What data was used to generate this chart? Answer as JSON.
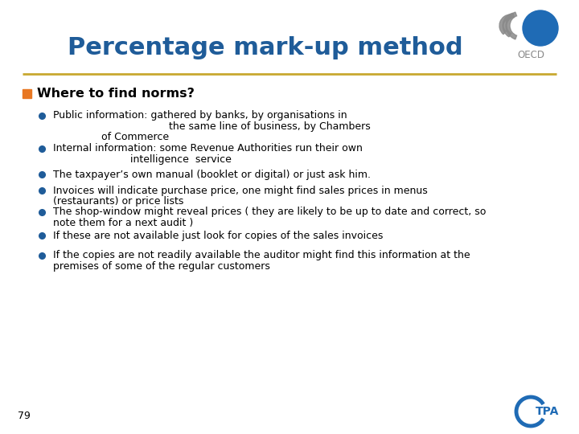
{
  "title": "Percentage mark-up method",
  "title_color": "#1F5C99",
  "title_fontsize": 22,
  "background_color": "#FFFFFF",
  "header_line_color": "#C8A830",
  "section_label": "Where to find norms?",
  "section_bullet_color": "#E87722",
  "bullet_color": "#1F5C99",
  "text_color": "#000000",
  "bullet_lines": [
    [
      "Public information: gathered by banks, by organisations in",
      "                                    the same line of business, by Chambers",
      "               of Commerce"
    ],
    [
      "Internal information: some Revenue Authorities run their own",
      "                        intelligence  service"
    ],
    [
      "The taxpayer’s own manual (booklet or digital) or just ask him."
    ],
    [
      "Invoices will indicate purchase price, one might find sales prices in menus",
      "(restaurants) or price lists"
    ],
    [
      "The shop-window might reveal prices ( they are likely to be up to date and correct, so",
      "note them for a next audit )"
    ],
    [
      "If these are not available just look for copies of the sales invoices"
    ],
    [
      "If the copies are not readily available the auditor might find this information at the",
      "premises of some of the regular customers"
    ]
  ],
  "page_number": "79",
  "font_family": "DejaVu Sans",
  "text_fontsize": 9.0,
  "section_fontsize": 11.5
}
